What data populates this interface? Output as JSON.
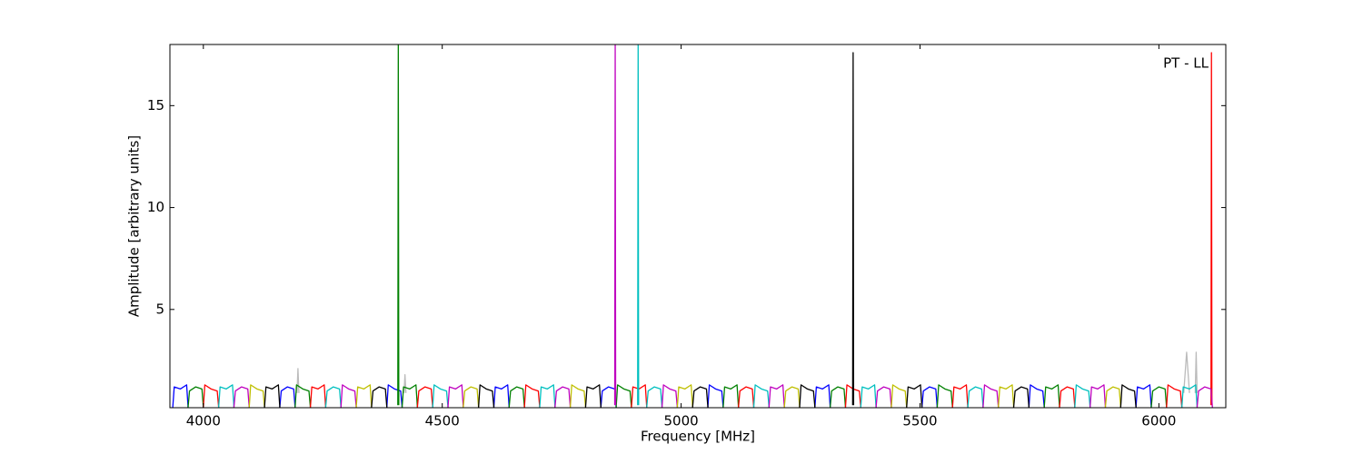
{
  "chart_data": {
    "type": "line",
    "annotation": "PT - LL",
    "x_label": "Frequency [MHz]",
    "y_label": "Amplitude [arbitrary units]",
    "xlim": [
      3930,
      6140
    ],
    "ylim": [
      0.18,
      18
    ],
    "xticks": [
      4000,
      4500,
      5000,
      5500,
      6000
    ],
    "yticks": [
      5,
      10,
      15
    ],
    "series": [
      {
        "color": "#bbbbbb",
        "x": [
          4196,
          4198,
          4200,
          4200,
          4420,
          4422,
          4424,
          4424,
          6052,
          6058,
          6064,
          6064,
          6076,
          6078,
          6080
        ],
        "values": [
          0.9,
          2.1,
          0.9,
          null,
          0.9,
          1.8,
          0.9,
          null,
          0.9,
          2.9,
          0.9,
          null,
          0.9,
          2.9,
          0.9
        ]
      },
      {
        "color": "#0000ff",
        "x": [
          3936,
          3939,
          3952,
          3965,
          3968,
          3968,
          4160,
          4163,
          4176,
          4189,
          4192,
          4192,
          4384,
          4387,
          4400,
          4413,
          4416,
          4416,
          4608,
          4611,
          4624,
          4637,
          4640,
          4640,
          4832,
          4835,
          4848,
          4861,
          4864,
          4864,
          5056,
          5059,
          5072,
          5085,
          5088,
          5088,
          5280,
          5283,
          5296,
          5309,
          5312,
          5312,
          5504,
          5507,
          5520,
          5533,
          5536,
          5536,
          5728,
          5731,
          5744,
          5757,
          5760,
          5760,
          5952,
          5955,
          5968,
          5981,
          5984
        ],
        "values": [
          0.2,
          1.2,
          1.1,
          1.3,
          0.2,
          null,
          0.2,
          1.0,
          1.2,
          1.1,
          0.2,
          null,
          0.2,
          1.3,
          1.1,
          1.0,
          0.2,
          null,
          0.2,
          1.2,
          1.1,
          1.3,
          0.2,
          null,
          0.2,
          1.0,
          1.2,
          1.1,
          0.2,
          null,
          0.2,
          1.3,
          1.1,
          1.0,
          0.2,
          null,
          0.2,
          1.2,
          1.1,
          1.3,
          0.2,
          null,
          0.2,
          1.0,
          1.2,
          1.1,
          0.2,
          null,
          0.2,
          1.3,
          1.1,
          1.0,
          0.2,
          null,
          0.2,
          1.2,
          1.1,
          1.3,
          0.2
        ]
      },
      {
        "color": "#008000",
        "x": [
          3968,
          3971,
          3984,
          3997,
          4000,
          4000,
          4192,
          4195,
          4208,
          4221,
          4224,
          4224,
          4416,
          4419,
          4432,
          4445,
          4448,
          4448,
          4640,
          4643,
          4656,
          4669,
          4672,
          4672,
          4864,
          4867,
          4880,
          4893,
          4896,
          4896,
          5088,
          5091,
          5104,
          5117,
          5120,
          5120,
          5312,
          5315,
          5328,
          5341,
          5344,
          5344,
          5536,
          5539,
          5552,
          5565,
          5568,
          5568,
          5760,
          5763,
          5776,
          5789,
          5792,
          5792,
          5984,
          5987,
          6000,
          6013,
          6016,
          6016,
          4407,
          4408,
          4409
        ],
        "values": [
          0.2,
          1.0,
          1.2,
          1.1,
          0.2,
          null,
          0.2,
          1.3,
          1.1,
          1.0,
          0.2,
          null,
          0.2,
          1.2,
          1.1,
          1.3,
          0.2,
          null,
          0.2,
          1.0,
          1.2,
          1.1,
          0.2,
          null,
          0.2,
          1.3,
          1.1,
          1.0,
          0.2,
          null,
          0.2,
          1.2,
          1.1,
          1.3,
          0.2,
          null,
          0.2,
          1.0,
          1.2,
          1.1,
          0.2,
          null,
          0.2,
          1.3,
          1.1,
          1.0,
          0.2,
          null,
          0.2,
          1.2,
          1.1,
          1.3,
          0.2,
          null,
          0.2,
          1.0,
          1.2,
          1.1,
          0.2,
          null,
          0.3,
          18,
          0.3
        ]
      },
      {
        "color": "#ff0000",
        "x": [
          4000,
          4003,
          4016,
          4029,
          4032,
          4032,
          4224,
          4227,
          4240,
          4253,
          4256,
          4256,
          4448,
          4451,
          4464,
          4477,
          4480,
          4480,
          4672,
          4675,
          4688,
          4701,
          4704,
          4704,
          4896,
          4899,
          4912,
          4925,
          4928,
          4928,
          5120,
          5123,
          5136,
          5149,
          5152,
          5152,
          5344,
          5347,
          5360,
          5373,
          5376,
          5376,
          5568,
          5571,
          5584,
          5597,
          5600,
          5600,
          5792,
          5795,
          5808,
          5821,
          5824,
          5824,
          6016,
          6019,
          6032,
          6045,
          6048,
          6048,
          6109,
          6110,
          6111
        ],
        "values": [
          0.2,
          1.3,
          1.1,
          1.0,
          0.2,
          null,
          0.2,
          1.2,
          1.1,
          1.3,
          0.2,
          null,
          0.2,
          1.0,
          1.2,
          1.1,
          0.2,
          null,
          0.2,
          1.3,
          1.1,
          1.0,
          0.2,
          null,
          0.2,
          1.2,
          1.1,
          1.3,
          0.2,
          null,
          0.2,
          1.0,
          1.2,
          1.1,
          0.2,
          null,
          0.2,
          1.3,
          1.1,
          1.0,
          0.2,
          null,
          0.2,
          1.2,
          1.1,
          1.3,
          0.2,
          null,
          0.2,
          1.0,
          1.2,
          1.1,
          0.2,
          null,
          0.2,
          1.3,
          1.1,
          1.0,
          0.2,
          null,
          0.3,
          17.6,
          0.3
        ]
      },
      {
        "color": "#00bfbf",
        "x": [
          4032,
          4035,
          4048,
          4061,
          4064,
          4064,
          4256,
          4259,
          4272,
          4285,
          4288,
          4288,
          4480,
          4483,
          4496,
          4509,
          4512,
          4512,
          4704,
          4707,
          4720,
          4733,
          4736,
          4736,
          4928,
          4931,
          4944,
          4957,
          4960,
          4960,
          5152,
          5155,
          5168,
          5181,
          5184,
          5184,
          5376,
          5379,
          5392,
          5405,
          5408,
          5408,
          5600,
          5603,
          5616,
          5629,
          5632,
          5632,
          5824,
          5827,
          5840,
          5853,
          5856,
          5856,
          6048,
          6051,
          6064,
          6077,
          6080,
          6080,
          4909,
          4910,
          4911
        ],
        "values": [
          0.2,
          1.2,
          1.1,
          1.3,
          0.2,
          null,
          0.2,
          1.0,
          1.2,
          1.1,
          0.2,
          null,
          0.2,
          1.3,
          1.1,
          1.0,
          0.2,
          null,
          0.2,
          1.2,
          1.1,
          1.3,
          0.2,
          null,
          0.2,
          1.0,
          1.2,
          1.1,
          0.2,
          null,
          0.2,
          1.3,
          1.1,
          1.0,
          0.2,
          null,
          0.2,
          1.2,
          1.1,
          1.3,
          0.2,
          null,
          0.2,
          1.0,
          1.2,
          1.1,
          0.2,
          null,
          0.2,
          1.3,
          1.1,
          1.0,
          0.2,
          null,
          0.2,
          1.2,
          1.1,
          1.3,
          0.2,
          null,
          0.3,
          18,
          0.3
        ]
      },
      {
        "color": "#bf00bf",
        "x": [
          4064,
          4067,
          4080,
          4093,
          4096,
          4096,
          4288,
          4291,
          4304,
          4317,
          4320,
          4320,
          4512,
          4515,
          4528,
          4541,
          4544,
          4544,
          4736,
          4739,
          4752,
          4765,
          4768,
          4768,
          4960,
          4963,
          4976,
          4989,
          4992,
          4992,
          5184,
          5187,
          5200,
          5213,
          5216,
          5216,
          5408,
          5411,
          5424,
          5437,
          5440,
          5440,
          5632,
          5635,
          5648,
          5661,
          5664,
          5664,
          5856,
          5859,
          5872,
          5885,
          5888,
          5888,
          6080,
          6083,
          6096,
          6109,
          6112,
          6112,
          4861,
          4862,
          4863
        ],
        "values": [
          0.2,
          1.0,
          1.2,
          1.1,
          0.2,
          null,
          0.2,
          1.3,
          1.1,
          1.0,
          0.2,
          null,
          0.2,
          1.2,
          1.1,
          1.3,
          0.2,
          null,
          0.2,
          1.0,
          1.2,
          1.1,
          0.2,
          null,
          0.2,
          1.3,
          1.1,
          1.0,
          0.2,
          null,
          0.2,
          1.2,
          1.1,
          1.3,
          0.2,
          null,
          0.2,
          1.0,
          1.2,
          1.1,
          0.2,
          null,
          0.2,
          1.3,
          1.1,
          1.0,
          0.2,
          null,
          0.2,
          1.2,
          1.1,
          1.3,
          0.2,
          null,
          0.2,
          1.0,
          1.2,
          1.1,
          0.2,
          null,
          0.3,
          18,
          0.3
        ]
      },
      {
        "color": "#bfbf00",
        "x": [
          4096,
          4099,
          4112,
          4125,
          4128,
          4128,
          4320,
          4323,
          4336,
          4349,
          4352,
          4352,
          4544,
          4547,
          4560,
          4573,
          4576,
          4576,
          4768,
          4771,
          4784,
          4797,
          4800,
          4800,
          4992,
          4995,
          5008,
          5021,
          5024,
          5024,
          5216,
          5219,
          5232,
          5245,
          5248,
          5248,
          5440,
          5443,
          5456,
          5469,
          5472,
          5472,
          5664,
          5667,
          5680,
          5693,
          5696,
          5696,
          5888,
          5891,
          5904,
          5917,
          5920
        ],
        "values": [
          0.2,
          1.3,
          1.1,
          1.0,
          0.2,
          null,
          0.2,
          1.2,
          1.1,
          1.3,
          0.2,
          null,
          0.2,
          1.0,
          1.2,
          1.1,
          0.2,
          null,
          0.2,
          1.3,
          1.1,
          1.0,
          0.2,
          null,
          0.2,
          1.2,
          1.1,
          1.3,
          0.2,
          null,
          0.2,
          1.0,
          1.2,
          1.1,
          0.2,
          null,
          0.2,
          1.3,
          1.1,
          1.0,
          0.2,
          null,
          0.2,
          1.2,
          1.1,
          1.3,
          0.2,
          null,
          0.2,
          1.0,
          1.2,
          1.1,
          0.2
        ]
      },
      {
        "color": "#000000",
        "x": [
          4128,
          4131,
          4144,
          4157,
          4160,
          4160,
          4352,
          4355,
          4368,
          4381,
          4384,
          4384,
          4576,
          4579,
          4592,
          4605,
          4608,
          4608,
          4800,
          4803,
          4816,
          4829,
          4832,
          4832,
          5024,
          5027,
          5040,
          5053,
          5056,
          5056,
          5248,
          5251,
          5264,
          5277,
          5280,
          5280,
          5472,
          5475,
          5488,
          5501,
          5504,
          5504,
          5696,
          5699,
          5712,
          5725,
          5728,
          5728,
          5920,
          5923,
          5936,
          5949,
          5952,
          5952,
          5359,
          5360,
          5361
        ],
        "values": [
          0.2,
          1.2,
          1.1,
          1.3,
          0.2,
          null,
          0.2,
          1.0,
          1.2,
          1.1,
          0.2,
          null,
          0.2,
          1.3,
          1.1,
          1.0,
          0.2,
          null,
          0.2,
          1.2,
          1.1,
          1.3,
          0.2,
          null,
          0.2,
          1.0,
          1.2,
          1.1,
          0.2,
          null,
          0.2,
          1.3,
          1.1,
          1.0,
          0.2,
          null,
          0.2,
          1.2,
          1.1,
          1.3,
          0.2,
          null,
          0.2,
          1.0,
          1.2,
          1.1,
          0.2,
          null,
          0.2,
          1.3,
          1.1,
          1.0,
          0.2,
          null,
          0.3,
          17.6,
          0.3
        ]
      }
    ]
  }
}
